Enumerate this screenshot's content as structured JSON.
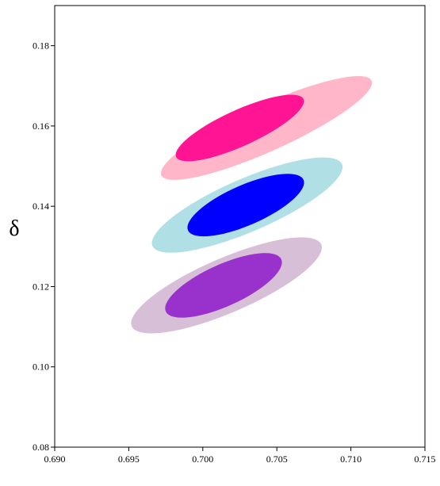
{
  "chart_data": {
    "type": "contour",
    "title": "",
    "xlabel": "",
    "ylabel": "δ",
    "xlim": [
      0.69,
      0.715
    ],
    "ylim": [
      0.08,
      0.19
    ],
    "xticks": [
      0.69,
      0.695,
      0.7,
      0.705,
      0.71,
      0.715
    ],
    "xtick_labels": [
      "0.690",
      "0.695",
      "0.700",
      "0.705",
      "0.710",
      "0.715"
    ],
    "yticks": [
      0.08,
      0.1,
      0.12,
      0.14,
      0.16,
      0.18
    ],
    "ytick_labels": [
      "0.08",
      "0.10",
      "0.12",
      "0.14",
      "0.16",
      "0.18"
    ],
    "grid": false,
    "legend": false,
    "series": [
      {
        "color_outer": "#ffb6c8",
        "color_inner": "#ff1493",
        "outer_ellipse": {
          "center": [
            0.7043,
            0.1595
          ],
          "half_axis": {
            "dx": 0.0071,
            "dy": 0.0118
          },
          "thickness": 0.0058
        },
        "inner_ellipse": {
          "center": [
            0.7025,
            0.1595
          ],
          "half_axis": {
            "dx": 0.0043,
            "dy": 0.0072
          },
          "thickness": 0.0045
        }
      },
      {
        "color_outer": "#b0e0e6",
        "color_inner": "#0000ff",
        "outer_ellipse": {
          "center": [
            0.703,
            0.1403
          ],
          "half_axis": {
            "dx": 0.0064,
            "dy": 0.0102
          },
          "thickness": 0.0066
        },
        "inner_ellipse": {
          "center": [
            0.7029,
            0.1403
          ],
          "half_axis": {
            "dx": 0.0039,
            "dy": 0.0063
          },
          "thickness": 0.005
        }
      },
      {
        "color_outer": "#d8bfd8",
        "color_inner": "#9932cc",
        "outer_ellipse": {
          "center": [
            0.7016,
            0.1203
          ],
          "half_axis": {
            "dx": 0.0064,
            "dy": 0.0102
          },
          "thickness": 0.0068
        },
        "inner_ellipse": {
          "center": [
            0.7014,
            0.1203
          ],
          "half_axis": {
            "dx": 0.0039,
            "dy": 0.0065
          },
          "thickness": 0.0052
        }
      }
    ]
  }
}
